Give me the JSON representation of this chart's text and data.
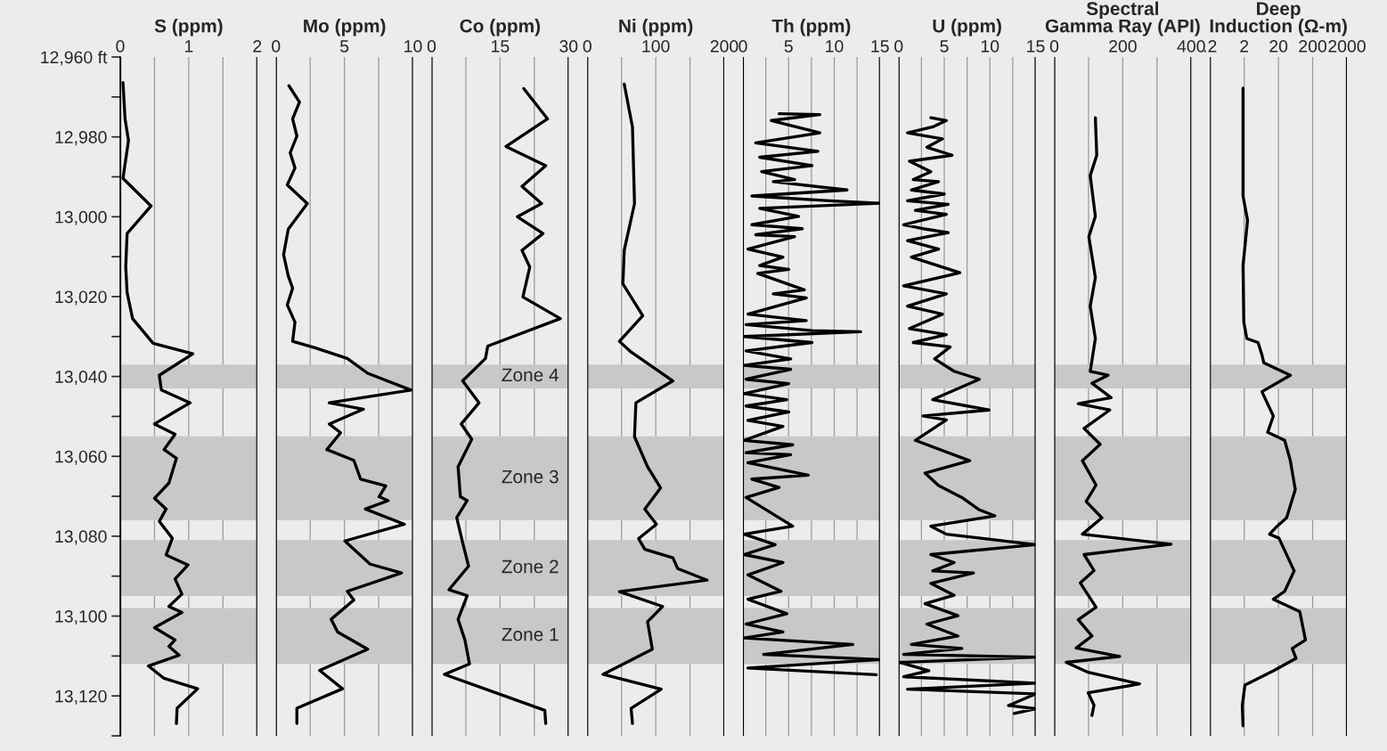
{
  "chart_data": [
    {
      "type": "line",
      "title": "S (ppm)",
      "xlim": [
        0,
        2
      ],
      "xticks": [
        0,
        {
          "value": 0.5,
          "label": null
        },
        1,
        {
          "value": 1.5,
          "label": null
        },
        2
      ],
      "ylim": [
        13130,
        12960
      ],
      "yticks": [
        {
          "value": 12960,
          "label": "12,960 ft"
        },
        {
          "value": 12970,
          "label": null
        },
        {
          "value": 12980,
          "label": "12,980"
        },
        {
          "value": 12990,
          "label": null
        },
        {
          "value": 13000,
          "label": "13,000"
        },
        {
          "value": 13010,
          "label": null
        },
        {
          "value": 13020,
          "label": "13,020"
        },
        {
          "value": 13030,
          "label": null
        },
        {
          "value": 13040,
          "label": "13,040"
        },
        {
          "value": 13050,
          "label": null
        },
        {
          "value": 13060,
          "label": "13,060"
        },
        {
          "value": 13070,
          "label": null
        },
        {
          "value": 13080,
          "label": "13,080"
        },
        {
          "value": 13090,
          "label": null
        },
        {
          "value": 13100,
          "label": "13,100"
        },
        {
          "value": 13110,
          "label": null
        },
        {
          "value": 13120,
          "label": "13,120"
        },
        {
          "value": 13130,
          "label": null
        }
      ],
      "grid": "x",
      "bands": [
        {
          "axis": "y",
          "from": 13037,
          "to": 13043,
          "color": "#c8c8ca"
        },
        {
          "axis": "y",
          "from": 13055,
          "to": 13076,
          "color": "#c8c8ca"
        },
        {
          "axis": "y",
          "from": 13081,
          "to": 13095,
          "color": "#c8c8ca"
        },
        {
          "axis": "y",
          "from": 13098,
          "to": 13112,
          "color": "#c8c8ca"
        }
      ],
      "series": [
        {
          "color": "#000000",
          "x": [
            0.04,
            0.07,
            0.12,
            0.04,
            0.45,
            0.1,
            0.08,
            0.1,
            0.18,
            0.48,
            1.06,
            0.57,
            0.6,
            1.02,
            0.8,
            0.5,
            0.8,
            0.64,
            0.82,
            0.71,
            0.5,
            0.67,
            0.57,
            0.76,
            0.67,
            0.99,
            0.8,
            0.9,
            0.71,
            0.9,
            0.5,
            0.8,
            0.71,
            0.86,
            0.41,
            0.64,
            1.13,
            0.83,
            0.82
          ],
          "values": [
            12966.4,
            12975.5,
            12980.9,
            12990.4,
            12997.3,
            13004.2,
            13012.6,
            13019.0,
            13025.5,
            13031.7,
            13034.3,
            13039.7,
            13043.4,
            13046.6,
            13048.8,
            13051.9,
            13054.5,
            13058.3,
            13060.5,
            13066.7,
            13070.5,
            13073.2,
            13076.3,
            13080.5,
            13084.7,
            13087.2,
            13090.7,
            13094.5,
            13097.6,
            13099.1,
            13102.9,
            13106.0,
            13107.6,
            13109.8,
            13112.5,
            13115.6,
            13118.2,
            13123.1,
            13126.9
          ]
        }
      ]
    },
    {
      "type": "line",
      "title": "Mo (ppm)",
      "xlim": [
        0,
        10
      ],
      "xticks": [
        0,
        {
          "value": 2.5,
          "label": null
        },
        5,
        {
          "value": 7.5,
          "label": null
        },
        10
      ],
      "ylim": [
        13130,
        12960
      ],
      "tick_labels": "x",
      "grid": "x",
      "bands": [
        {
          "axis": "y",
          "from": 13037,
          "to": 13043,
          "color": "#c8c8ca"
        },
        {
          "axis": "y",
          "from": 13055,
          "to": 13076,
          "color": "#c8c8ca"
        },
        {
          "axis": "y",
          "from": 13081,
          "to": 13095,
          "color": "#c8c8ca"
        },
        {
          "axis": "y",
          "from": 13098,
          "to": 13112,
          "color": "#c8c8ca"
        }
      ],
      "series": [
        {
          "color": "#000000",
          "x": [
            0.95,
            1.72,
            1.22,
            1.53,
            1.04,
            1.39,
            0.83,
            2.29,
            0.9,
            0.56,
            0.9,
            1.22,
            0.83,
            1.39,
            1.22,
            2.85,
            5.21,
            6.7,
            9.86,
            3.89,
            6.39,
            3.89,
            4.72,
            3.72,
            5.69,
            6.18,
            8.02,
            7.53,
            8.19,
            6.53,
            9.38,
            5.03,
            6.88,
            9.17,
            5.21,
            5.69,
            4.03,
            4.51,
            6.7,
            3.19,
            4.86,
            1.53,
            1.53
          ],
          "values": [
            12967.2,
            12971.3,
            12975.5,
            12979.8,
            12984.0,
            12987.8,
            12992.0,
            12996.7,
            13003.1,
            13009.5,
            13014.8,
            13017.9,
            13022.1,
            13026.4,
            13031.2,
            13032.8,
            13035.5,
            13039.2,
            13043.4,
            13046.6,
            13048.2,
            13051.9,
            13054.1,
            13058.3,
            13061.0,
            13065.7,
            13067.4,
            13070.1,
            13071.1,
            13073.2,
            13077.0,
            13081.2,
            13087.0,
            13089.2,
            13093.8,
            13096.0,
            13100.8,
            13104.0,
            13108.3,
            13113.6,
            13118.2,
            13123.1,
            13126.9
          ]
        }
      ]
    },
    {
      "type": "line",
      "title": "Co (ppm)",
      "xlim": [
        0,
        30
      ],
      "xticks": [
        0,
        {
          "value": 7.5,
          "label": null
        },
        15,
        {
          "value": 22.5,
          "label": null
        },
        30
      ],
      "ylim": [
        13130,
        12960
      ],
      "tick_labels": "x",
      "grid": "x",
      "bands": [
        {
          "axis": "y",
          "from": 13037,
          "to": 13043,
          "color": "#c8c8ca",
          "label": "Zone 4"
        },
        {
          "axis": "y",
          "from": 13055,
          "to": 13076,
          "color": "#c8c8ca",
          "label": "Zone 3"
        },
        {
          "axis": "y",
          "from": 13081,
          "to": 13095,
          "color": "#c8c8ca",
          "label": "Zone 2"
        },
        {
          "axis": "y",
          "from": 13098,
          "to": 13112,
          "color": "#c8c8ca",
          "label": "Zone 1"
        }
      ],
      "series": [
        {
          "color": "#000000",
          "x": [
            20.2,
            25.4,
            16.3,
            25.0,
            19.8,
            24.1,
            18.8,
            24.4,
            19.8,
            21.5,
            20.0,
            28.2,
            12.3,
            11.8,
            6.8,
            10.4,
            6.5,
            8.8,
            5.8,
            6.3,
            7.8,
            5.5,
            6.8,
            8.1,
            3.8,
            7.8,
            5.8,
            7.3,
            8.3,
            2.8,
            24.8,
            25.0
          ],
          "values": [
            12967.9,
            12975.5,
            12982.4,
            12987.2,
            12992.4,
            12996.7,
            13000.0,
            13004.2,
            13008.4,
            13012.6,
            13020.1,
            13025.5,
            13032.4,
            13035.5,
            13041.1,
            13046.6,
            13051.9,
            13055.7,
            13062.6,
            13070.1,
            13071.1,
            13075.3,
            13081.6,
            13087.5,
            13093.4,
            13094.9,
            13100.8,
            13106.0,
            13112.0,
            13114.6,
            13123.6,
            13126.9
          ]
        }
      ]
    },
    {
      "type": "line",
      "title": "Ni (ppm)",
      "xlim": [
        0,
        200
      ],
      "xticks": [
        0,
        {
          "value": 50,
          "label": null
        },
        100,
        {
          "value": 150,
          "label": null
        },
        200
      ],
      "ylim": [
        13130,
        12960
      ],
      "tick_labels": "x",
      "grid": "x",
      "bands": [
        {
          "axis": "y",
          "from": 13037,
          "to": 13043,
          "color": "#c8c8ca"
        },
        {
          "axis": "y",
          "from": 13055,
          "to": 13076,
          "color": "#c8c8ca"
        },
        {
          "axis": "y",
          "from": 13081,
          "to": 13095,
          "color": "#c8c8ca"
        },
        {
          "axis": "y",
          "from": 13098,
          "to": 13112,
          "color": "#c8c8ca"
        }
      ],
      "series": [
        {
          "color": "#000000",
          "x": [
            54,
            66,
            69,
            54,
            52,
            81,
            47,
            64,
            125,
            71,
            69,
            88,
            107,
            84,
            101,
            75,
            84,
            125,
            132,
            175,
            47,
            110,
            88,
            95,
            23,
            108,
            64,
            66
          ],
          "values": [
            12966.8,
            12977.5,
            12996.7,
            13008.4,
            13016.8,
            13024.8,
            13031.2,
            13033.9,
            13041.1,
            13046.6,
            13055.1,
            13062.6,
            13067.9,
            13073.2,
            13077.0,
            13080.6,
            13083.3,
            13085.4,
            13088.1,
            13091.0,
            13093.9,
            13097.6,
            13101.4,
            13108.3,
            13114.6,
            13118.3,
            13123.1,
            13126.9
          ]
        }
      ]
    },
    {
      "type": "line",
      "title": "Th (ppm)",
      "xlim": [
        0,
        15
      ],
      "xticks": [
        0,
        {
          "value": 2.5,
          "label": null
        },
        5,
        {
          "value": 7.5,
          "label": null
        },
        10,
        {
          "value": 12.5,
          "label": null
        },
        15
      ],
      "ylim": [
        13130,
        12960
      ],
      "tick_labels": "x",
      "grid": "x",
      "bands": [
        {
          "axis": "y",
          "from": 13037,
          "to": 13043,
          "color": "#c8c8ca"
        },
        {
          "axis": "y",
          "from": 13055,
          "to": 13076,
          "color": "#c8c8ca"
        },
        {
          "axis": "y",
          "from": 13081,
          "to": 13095,
          "color": "#c8c8ca"
        },
        {
          "axis": "y",
          "from": 13098,
          "to": 13112,
          "color": "#c8c8ca"
        }
      ],
      "series": [
        {
          "color": "#000000",
          "x": [
            3.96,
            8.43,
            3.11,
            8.43,
            1.4,
            8.21,
            1.83,
            7.57,
            2.04,
            5.66,
            3.32,
            11.4,
            0.98,
            9.49,
            15.0,
            1.83,
            6.09,
            0.98,
            6.51,
            1.4,
            5.66,
            0.55,
            4.38,
            1.83,
            5.02,
            1.62,
            6.72,
            3.32,
            6.94,
            0.55,
            6.94,
            0.34,
            7.57,
            12.89,
            0.13,
            7.57,
            0.34,
            5.23,
            0.13,
            5.23,
            0.34,
            5.02,
            0.13,
            4.81,
            0.34,
            5.02,
            0.55,
            4.38,
            0.13,
            5.45,
            0.34,
            5.23,
            0.55,
            7.15,
            0.98,
            3.96,
            0.34,
            5.45,
            0.13,
            3.53,
            0.13,
            4.38,
            0.55,
            4.17,
            0.55,
            4.81,
            0.34,
            4.38,
            0.13,
            12.04,
            2.26,
            15.0,
            0.55,
            14.6
          ],
          "values": [
            12974.2,
            12974.4,
            12975.9,
            12979.0,
            12981.5,
            12983.6,
            12985.1,
            12987.2,
            12988.7,
            12990.7,
            12991.2,
            12993.3,
            12994.8,
            12996.0,
            12996.6,
            12997.9,
            12999.9,
            13002.0,
            13003.0,
            13004.5,
            13005.0,
            13008.1,
            13010.1,
            13012.2,
            13013.2,
            13014.2,
            13018.3,
            13019.3,
            13020.3,
            13024.4,
            13026.0,
            13027.0,
            13028.5,
            13028.8,
            13030.0,
            13031.5,
            13033.6,
            13035.6,
            13037.2,
            13038.2,
            13040.7,
            13041.8,
            13044.3,
            13045.8,
            13047.4,
            13048.9,
            13051.0,
            13052.5,
            13056.0,
            13057.1,
            13059.1,
            13059.6,
            13061.6,
            13064.7,
            13065.7,
            13067.8,
            13070.3,
            13077.5,
            13079.5,
            13082.1,
            13084.6,
            13086.6,
            13089.7,
            13093.8,
            13095.8,
            13099.4,
            13102.0,
            13104.0,
            13105.5,
            13107.1,
            13109.6,
            13110.9,
            13113.0,
            13114.7
          ]
        }
      ]
    },
    {
      "type": "line",
      "title": "U (ppm)",
      "xlim": [
        0,
        15
      ],
      "xticks": [
        0,
        {
          "value": 2.5,
          "label": null
        },
        5,
        {
          "value": 7.5,
          "label": null
        },
        10,
        {
          "value": 12.5,
          "label": null
        },
        15
      ],
      "ylim": [
        13130,
        12960
      ],
      "tick_labels": "x",
      "grid": "x",
      "bands": [
        {
          "axis": "y",
          "from": 13037,
          "to": 13043,
          "color": "#c8c8ca"
        },
        {
          "axis": "y",
          "from": 13055,
          "to": 13076,
          "color": "#c8c8ca"
        },
        {
          "axis": "y",
          "from": 13081,
          "to": 13095,
          "color": "#c8c8ca"
        },
        {
          "axis": "y",
          "from": 13098,
          "to": 13112,
          "color": "#c8c8ca"
        }
      ],
      "series": [
        {
          "color": "#000000",
          "x": [
            3.53,
            5.23,
            3.74,
            0.98,
            4.8,
            3.1,
            5.86,
            1.19,
            3.53,
            1.61,
            4.38,
            1.4,
            5.01,
            0.98,
            5.44,
            1.83,
            5.23,
            0.55,
            2.68,
            5.44,
            0.98,
            4.38,
            1.4,
            6.71,
            0.55,
            5.23,
            0.98,
            4.8,
            1.19,
            5.23,
            1.61,
            5.65,
            3.95,
            6.08,
            8.84,
            3.74,
            9.9,
            2.68,
            5.23,
            1.83,
            7.78,
            2.89,
            4.38,
            6.93,
            8.84,
            10.54,
            3.53,
            5.23,
            15.0,
            3.53,
            6.08,
            3.74,
            8.2,
            3.53,
            6.08,
            2.89,
            6.5,
            3.1,
            6.5,
            1.4,
            6.93,
            0.55,
            15.0,
            0.13,
            3.31,
            0.55,
            15.0,
            0.98,
            15.0,
            12.03,
            15.0,
            12.66
          ],
          "values": [
            12975.2,
            12975.9,
            12977.5,
            12979.0,
            12980.5,
            12982.6,
            12984.6,
            12986.1,
            12988.7,
            12990.7,
            12991.2,
            12993.3,
            12994.3,
            12996.0,
            12996.9,
            12998.4,
            12999.4,
            13002.0,
            13003.0,
            13004.0,
            13006.0,
            13008.1,
            13010.1,
            13014.0,
            13017.3,
            13019.3,
            13022.4,
            13024.4,
            13028.0,
            13029.5,
            13031.5,
            13032.6,
            13035.6,
            13038.7,
            13040.7,
            13045.8,
            13048.4,
            13049.9,
            13050.9,
            13056.0,
            13061.1,
            13064.2,
            13067.3,
            13070.3,
            13073.4,
            13074.9,
            13077.5,
            13079.5,
            13082.1,
            13084.6,
            13086.6,
            13088.7,
            13089.2,
            13091.8,
            13094.8,
            13096.9,
            13099.9,
            13102.0,
            13105.0,
            13107.1,
            13108.1,
            13109.6,
            13110.3,
            13111.6,
            13113.7,
            13115.2,
            13116.8,
            13118.3,
            13119.5,
            13122.4,
            13123.2,
            13124.4
          ]
        }
      ]
    },
    {
      "type": "line",
      "title": "Spectral\nGamma Ray (API)",
      "xlim": [
        0,
        400
      ],
      "xticks": [
        0,
        {
          "value": 100,
          "label": null
        },
        200,
        {
          "value": 300,
          "label": null
        },
        400
      ],
      "ylim": [
        13130,
        12960
      ],
      "tick_labels": "x",
      "grid": "x",
      "bands": [
        {
          "axis": "y",
          "from": 13037,
          "to": 13043,
          "color": "#c8c8ca"
        },
        {
          "axis": "y",
          "from": 13055,
          "to": 13076,
          "color": "#c8c8ca"
        },
        {
          "axis": "y",
          "from": 13081,
          "to": 13095,
          "color": "#c8c8ca"
        },
        {
          "axis": "y",
          "from": 13098,
          "to": 13112,
          "color": "#c8c8ca"
        }
      ],
      "series": [
        {
          "color": "#000000",
          "x": [
            120,
            124,
            105,
            120,
            101,
            120,
            105,
            120,
            105,
            157,
            110,
            166,
            70,
            162,
            87,
            134,
            82,
            122,
            93,
            139,
            82,
            341,
            87,
            116,
            76,
            122,
            70,
            110,
            64,
            191,
            35,
            99,
            249,
            99,
            116,
            110
          ],
          "values": [
            12975.2,
            12984.6,
            12989.7,
            12999.9,
            13005.0,
            13015.2,
            13022.4,
            13030.5,
            13038.7,
            13039.7,
            13041.7,
            13045.3,
            13046.8,
            13048.4,
            13053.0,
            13057.0,
            13061.1,
            13067.2,
            13071.3,
            13075.4,
            13079.5,
            13082.0,
            13084.6,
            13088.6,
            13091.7,
            13097.8,
            13100.9,
            13105.0,
            13108.0,
            13110.1,
            13111.6,
            13114.1,
            13117.0,
            13119.2,
            13122.3,
            13124.9
          ]
        }
      ]
    },
    {
      "type": "line",
      "title": "Deep\nInduction (Ω-m)",
      "log": "x",
      "xlim": [
        0.2,
        2000
      ],
      "xticks": [
        {
          "value": 0.2,
          "label": ".2"
        },
        2,
        20,
        200,
        2000
      ],
      "ylim": [
        13130,
        12960
      ],
      "tick_labels": "x",
      "grid": "x",
      "bands": [
        {
          "axis": "y",
          "from": 13037,
          "to": 13043,
          "color": "#c8c8ca"
        },
        {
          "axis": "y",
          "from": 13055,
          "to": 13076,
          "color": "#c8c8ca"
        },
        {
          "axis": "y",
          "from": 13081,
          "to": 13095,
          "color": "#c8c8ca"
        },
        {
          "axis": "y",
          "from": 13098,
          "to": 13112,
          "color": "#c8c8ca"
        }
      ],
      "series": [
        {
          "color": "#000000",
          "x": [
            1.85,
            1.85,
            2.51,
            1.85,
            1.95,
            2.39,
            5.1,
            6.6,
            7.5,
            44.6,
            6.6,
            14.2,
            9.7,
            30.4,
            44.6,
            62.1,
            34.6,
            18.3,
            11.0,
            20.8,
            57.5,
            30.4,
            14.2,
            84.2,
            123,
            50.6,
            65.3,
            14.2,
            2.1,
            1.76,
            1.85
          ],
          "values": [
            12967.8,
            12994.8,
            13000.9,
            13012.2,
            13026.4,
            13030.5,
            13031.5,
            13034.6,
            13036.6,
            13039.7,
            13043.8,
            13049.9,
            13054.0,
            13056.0,
            13061.1,
            13068.3,
            13075.4,
            13077.5,
            13079.5,
            13080.5,
            13088.7,
            13093.8,
            13095.8,
            13098.9,
            13106.0,
            13108.1,
            13110.6,
            13113.7,
            13117.3,
            13122.4,
            13127.5
          ]
        }
      ]
    }
  ]
}
